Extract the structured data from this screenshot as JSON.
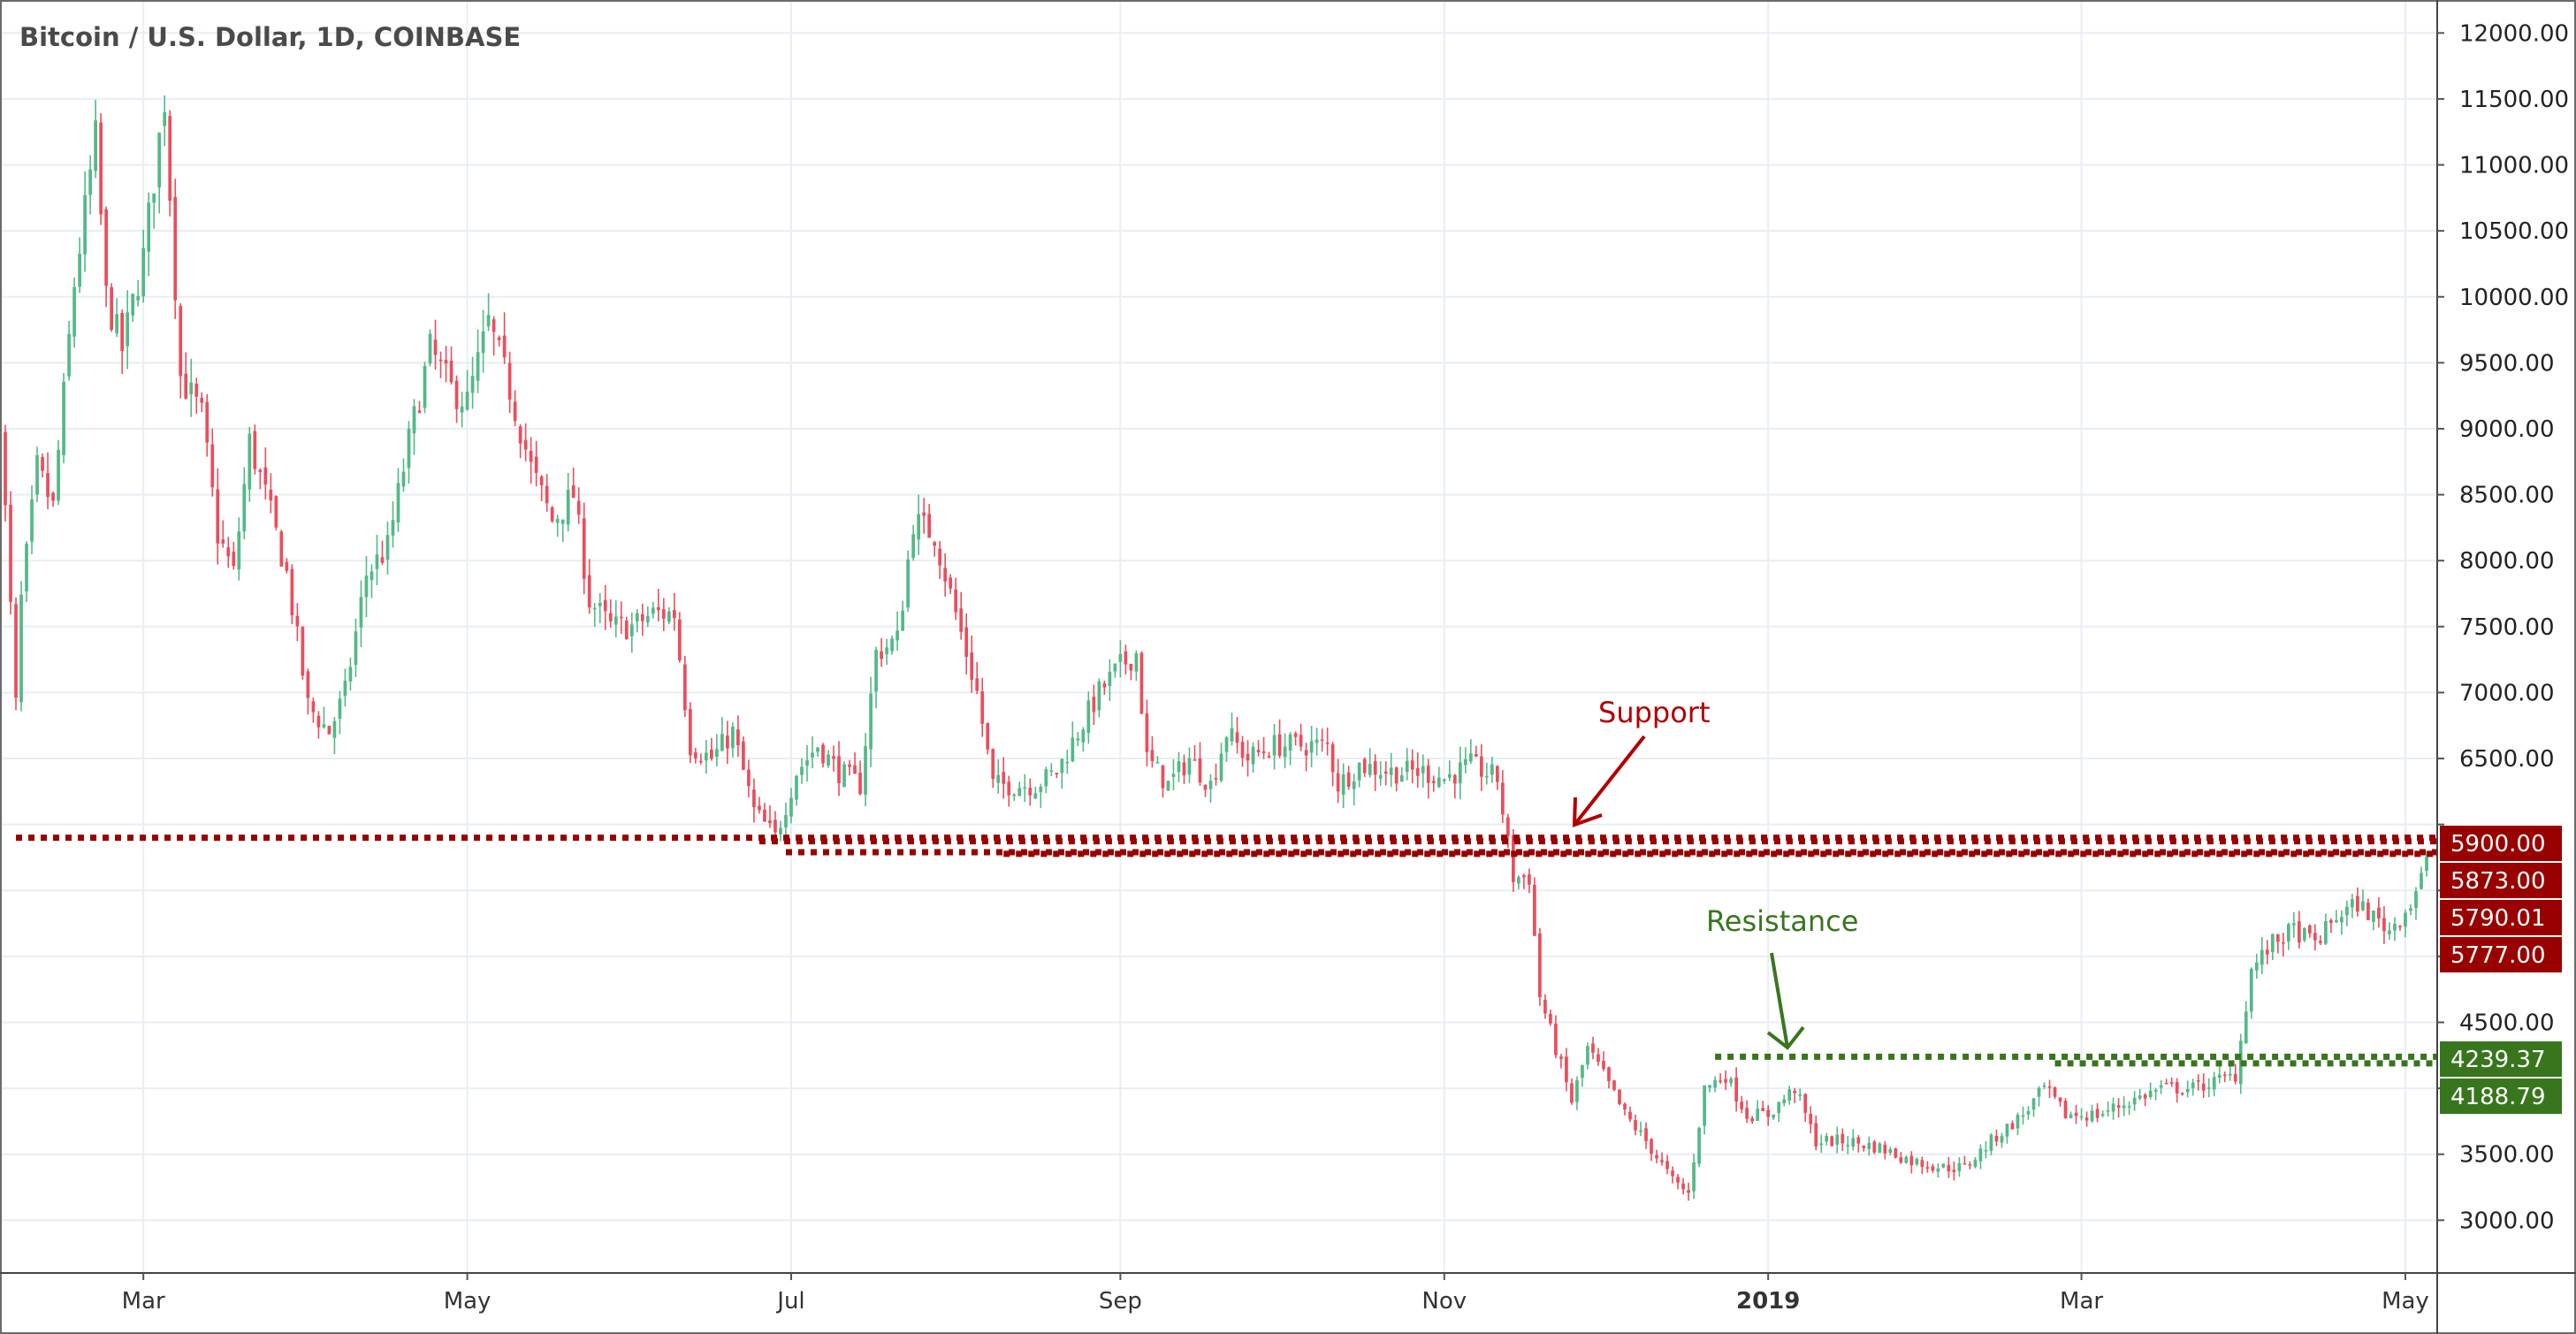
{
  "chart_data": {
    "type": "candlestick",
    "title": "Bitcoin / U.S. Dollar, 1D, COINBASE",
    "symbol": "Bitcoin / U.S. Dollar",
    "interval": "1D",
    "exchange": "COINBASE",
    "ylim": [
      2600,
      12250
    ],
    "yticks": [
      3000,
      3500,
      4000,
      4500,
      5000,
      5500,
      6000,
      6500,
      7000,
      7500,
      8000,
      8500,
      9000,
      9500,
      10000,
      10500,
      11000,
      11500,
      12000
    ],
    "ytick_labels": [
      "3000.00",
      "3500.00",
      "",
      "4500.00",
      "",
      "",
      "",
      "6500.00",
      "7000.00",
      "7500.00",
      "8000.00",
      "8500.00",
      "9000.00",
      "9500.00",
      "10000.00",
      "10500.00",
      "11000.00",
      "11500.00",
      "12000.00"
    ],
    "xlim": [
      "2018-02-02",
      "2019-05-07"
    ],
    "xticks": [
      {
        "date": "2018-03-01",
        "label": "Mar",
        "bold": false
      },
      {
        "date": "2018-05-01",
        "label": "May",
        "bold": false
      },
      {
        "date": "2018-07-01",
        "label": "Jul",
        "bold": false
      },
      {
        "date": "2018-09-01",
        "label": "Sep",
        "bold": false
      },
      {
        "date": "2018-11-01",
        "label": "Nov",
        "bold": false
      },
      {
        "date": "2019-01-01",
        "label": "2019",
        "bold": true
      },
      {
        "date": "2019-03-01",
        "label": "Mar",
        "bold": false
      },
      {
        "date": "2019-05-01",
        "label": "May",
        "bold": false
      }
    ],
    "grid": true,
    "up_color": "#53b987",
    "down_color": "#eb4d5c",
    "close_path": [
      [
        "2018-02-02",
        9100
      ],
      [
        "2018-02-05",
        6900
      ],
      [
        "2018-02-06",
        7700
      ],
      [
        "2018-02-09",
        8700
      ],
      [
        "2018-02-12",
        8400
      ],
      [
        "2018-02-16",
        10100
      ],
      [
        "2018-02-20",
        11200
      ],
      [
        "2018-02-22",
        10000
      ],
      [
        "2018-02-25",
        9600
      ],
      [
        "2018-03-01",
        10300
      ],
      [
        "2018-03-05",
        11500
      ],
      [
        "2018-03-08",
        9400
      ],
      [
        "2018-03-12",
        9100
      ],
      [
        "2018-03-15",
        8200
      ],
      [
        "2018-03-18",
        7900
      ],
      [
        "2018-03-21",
        8900
      ],
      [
        "2018-03-24",
        8500
      ],
      [
        "2018-03-28",
        7900
      ],
      [
        "2018-04-01",
        6900
      ],
      [
        "2018-04-05",
        6700
      ],
      [
        "2018-04-08",
        7000
      ],
      [
        "2018-04-12",
        7900
      ],
      [
        "2018-04-16",
        8100
      ],
      [
        "2018-04-20",
        8900
      ],
      [
        "2018-04-24",
        9600
      ],
      [
        "2018-04-28",
        9300
      ],
      [
        "2018-05-01",
        9200
      ],
      [
        "2018-05-05",
        9800
      ],
      [
        "2018-05-09",
        9300
      ],
      [
        "2018-05-13",
        8700
      ],
      [
        "2018-05-17",
        8300
      ],
      [
        "2018-05-21",
        8500
      ],
      [
        "2018-05-24",
        7700
      ],
      [
        "2018-05-28",
        7500
      ],
      [
        "2018-06-01",
        7500
      ],
      [
        "2018-06-05",
        7600
      ],
      [
        "2018-06-09",
        7600
      ],
      [
        "2018-06-12",
        6600
      ],
      [
        "2018-06-16",
        6500
      ],
      [
        "2018-06-20",
        6700
      ],
      [
        "2018-06-24",
        6100
      ],
      [
        "2018-06-28",
        5900
      ],
      [
        "2018-07-02",
        6400
      ],
      [
        "2018-07-06",
        6600
      ],
      [
        "2018-07-10",
        6400
      ],
      [
        "2018-07-14",
        6300
      ],
      [
        "2018-07-17",
        7300
      ],
      [
        "2018-07-21",
        7400
      ],
      [
        "2018-07-24",
        8300
      ],
      [
        "2018-07-28",
        8200
      ],
      [
        "2018-08-01",
        7600
      ],
      [
        "2018-08-05",
        7000
      ],
      [
        "2018-08-08",
        6300
      ],
      [
        "2018-08-12",
        6300
      ],
      [
        "2018-08-16",
        6300
      ],
      [
        "2018-08-20",
        6400
      ],
      [
        "2018-08-24",
        6700
      ],
      [
        "2018-08-28",
        7000
      ],
      [
        "2018-09-01",
        7200
      ],
      [
        "2018-09-04",
        7300
      ],
      [
        "2018-09-06",
        6500
      ],
      [
        "2018-09-10",
        6300
      ],
      [
        "2018-09-14",
        6500
      ],
      [
        "2018-09-18",
        6300
      ],
      [
        "2018-09-21",
        6700
      ],
      [
        "2018-09-25",
        6500
      ],
      [
        "2018-09-30",
        6600
      ],
      [
        "2018-10-05",
        6600
      ],
      [
        "2018-10-10",
        6600
      ],
      [
        "2018-10-12",
        6300
      ],
      [
        "2018-10-16",
        6450
      ],
      [
        "2018-10-22",
        6400
      ],
      [
        "2018-10-28",
        6400
      ],
      [
        "2018-11-01",
        6350
      ],
      [
        "2018-11-06",
        6450
      ],
      [
        "2018-11-11",
        6350
      ],
      [
        "2018-11-14",
        5600
      ],
      [
        "2018-11-17",
        5600
      ],
      [
        "2018-11-19",
        4700
      ],
      [
        "2018-11-22",
        4300
      ],
      [
        "2018-11-25",
        3900
      ],
      [
        "2018-11-28",
        4300
      ],
      [
        "2018-12-01",
        4100
      ],
      [
        "2018-12-05",
        3800
      ],
      [
        "2018-12-09",
        3600
      ],
      [
        "2018-12-14",
        3300
      ],
      [
        "2018-12-17",
        3200
      ],
      [
        "2018-12-20",
        4000
      ],
      [
        "2018-12-24",
        4100
      ],
      [
        "2018-12-28",
        3800
      ],
      [
        "2019-01-01",
        3800
      ],
      [
        "2019-01-06",
        4000
      ],
      [
        "2019-01-10",
        3600
      ],
      [
        "2019-01-16",
        3600
      ],
      [
        "2019-01-22",
        3550
      ],
      [
        "2019-01-28",
        3450
      ],
      [
        "2019-02-03",
        3400
      ],
      [
        "2019-02-07",
        3400
      ],
      [
        "2019-02-12",
        3600
      ],
      [
        "2019-02-18",
        3800
      ],
      [
        "2019-02-22",
        4000
      ],
      [
        "2019-02-26",
        3800
      ],
      [
        "2019-03-04",
        3800
      ],
      [
        "2019-03-10",
        3900
      ],
      [
        "2019-03-16",
        4000
      ],
      [
        "2019-03-22",
        4000
      ],
      [
        "2019-03-30",
        4100
      ],
      [
        "2019-04-02",
        4900
      ],
      [
        "2019-04-06",
        5100
      ],
      [
        "2019-04-10",
        5200
      ],
      [
        "2019-04-14",
        5100
      ],
      [
        "2019-04-18",
        5300
      ],
      [
        "2019-04-22",
        5400
      ],
      [
        "2019-04-25",
        5300
      ],
      [
        "2019-04-28",
        5200
      ],
      [
        "2019-05-02",
        5400
      ],
      [
        "2019-05-05",
        5700
      ]
    ],
    "support_lines": [
      {
        "start": "2018-02-05",
        "value": 5900,
        "label": "5900.00"
      },
      {
        "start": "2018-06-25",
        "value": 5873,
        "label": "5873.00"
      },
      {
        "start": "2018-06-30",
        "value": 5790.01,
        "label": "5790.01"
      },
      {
        "start": "2018-08-10",
        "value": 5777,
        "label": "5777.00"
      }
    ],
    "resistance_lines": [
      {
        "start": "2018-12-22",
        "value": 4239.37,
        "label": "4239.37"
      },
      {
        "start": "2019-02-24",
        "value": 4188.79,
        "label": "4188.79"
      }
    ],
    "support_color": "#990000",
    "resistance_color": "#38761d",
    "annotations": [
      {
        "text": "Support",
        "color": "#b00000"
      },
      {
        "text": "Resistance",
        "color": "#38761d"
      }
    ]
  }
}
